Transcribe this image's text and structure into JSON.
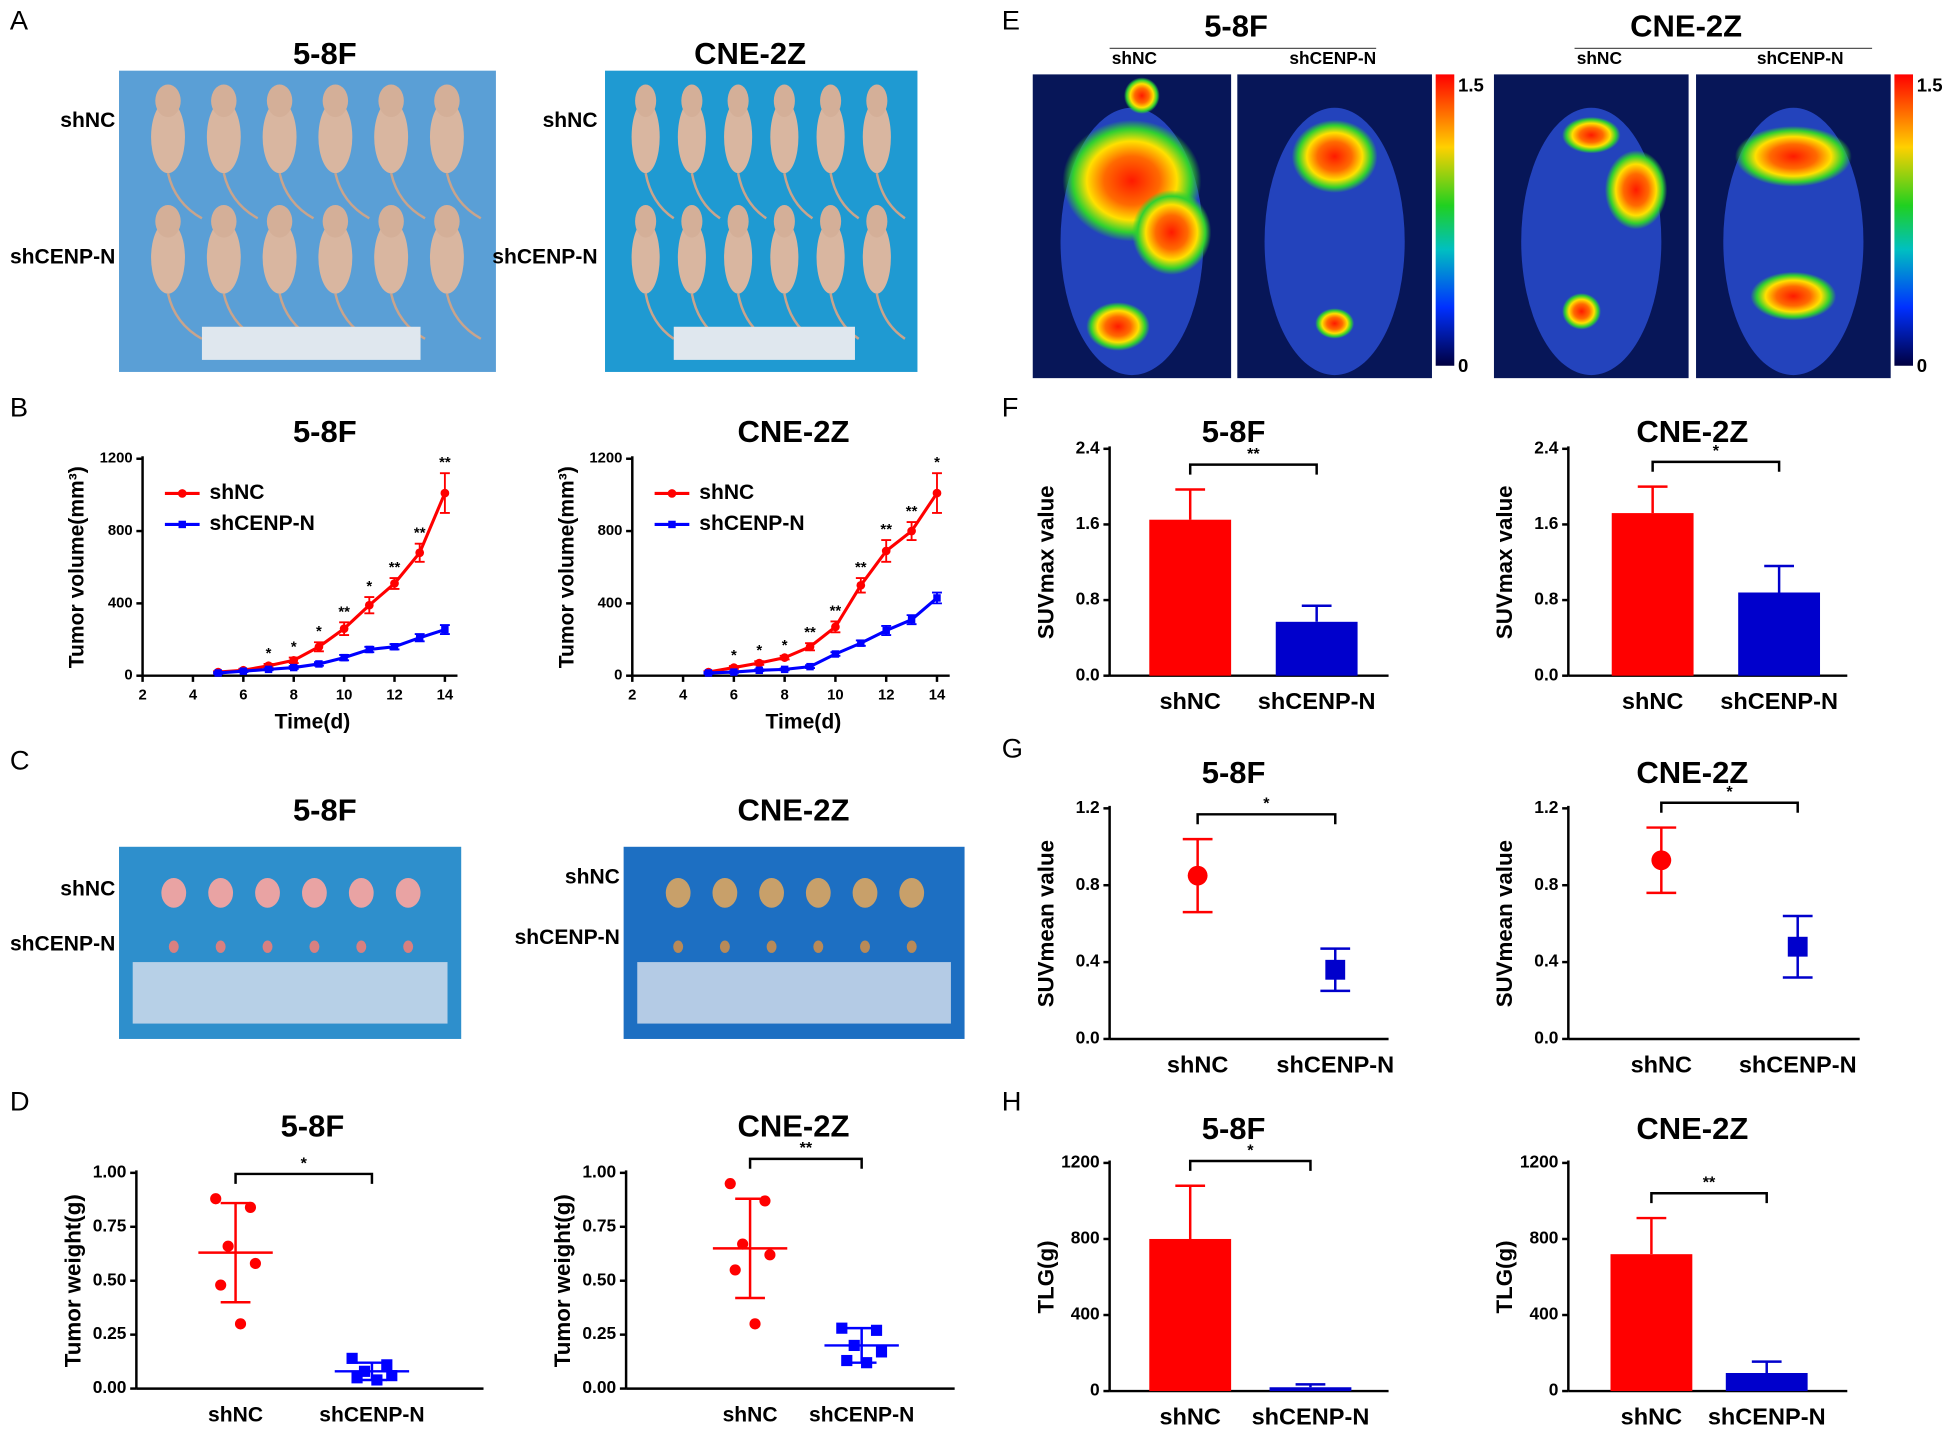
{
  "panel_letters": [
    "A",
    "B",
    "C",
    "D",
    "E",
    "F",
    "G",
    "H"
  ],
  "panel_a": [
    {
      "title": "5-8F",
      "rows": [
        "shNC",
        "shCENP-N"
      ]
    },
    {
      "title": "CNE-2Z",
      "rows": [
        "shNC",
        "shCENP-N"
      ]
    }
  ],
  "panel_c": [
    {
      "title": "5-8F",
      "rows": [
        "shNC",
        "shCENP-N"
      ]
    },
    {
      "title": "CNE-2Z",
      "rows": [
        "shNC",
        "shCENP-N"
      ]
    }
  ],
  "panel_e": [
    {
      "title": "5-8F",
      "columns": [
        "shNC",
        "shCENP-N"
      ],
      "scale_max": 1.5,
      "scale_min": 0
    },
    {
      "title": "CNE-2Z",
      "columns": [
        "shNC",
        "shCENP-N"
      ],
      "scale_max": 1.5,
      "scale_min": 0
    }
  ],
  "chart_data": [
    {
      "type": "line",
      "title": "5-8F",
      "x_label": "Time(d)",
      "y_label": "Tumor volume(mm³)",
      "x": [
        5,
        6,
        7,
        8,
        9,
        10,
        11,
        12,
        13,
        14
      ],
      "xlim": [
        2,
        14.5
      ],
      "xticks": [
        2,
        4,
        6,
        8,
        10,
        12,
        14
      ],
      "ylim": [
        0,
        1200
      ],
      "yticks": [
        0,
        400,
        800,
        1200
      ],
      "legend": "upper left",
      "series": [
        {
          "name": "shNC",
          "color": "#ff0000",
          "marker": "circle",
          "values": [
            20,
            30,
            55,
            85,
            160,
            260,
            390,
            510,
            680,
            1010
          ],
          "errors": [
            5,
            8,
            10,
            15,
            25,
            35,
            45,
            30,
            50,
            110
          ]
        },
        {
          "name": "shCENP-N",
          "color": "#0000ff",
          "marker": "square",
          "values": [
            15,
            25,
            35,
            45,
            65,
            100,
            145,
            160,
            210,
            255
          ],
          "errors": [
            5,
            5,
            5,
            8,
            10,
            15,
            15,
            15,
            20,
            25
          ]
        }
      ],
      "significance": [
        null,
        null,
        "*",
        "*",
        "*",
        "**",
        "*",
        "**",
        "**",
        "**"
      ]
    },
    {
      "type": "line",
      "title": "CNE-2Z",
      "x_label": "Time(d)",
      "y_label": "Tumor volume(mm³)",
      "x": [
        5,
        6,
        7,
        8,
        9,
        10,
        11,
        12,
        13,
        14
      ],
      "xlim": [
        2,
        14.5
      ],
      "xticks": [
        2,
        4,
        6,
        8,
        10,
        12,
        14
      ],
      "ylim": [
        0,
        1200
      ],
      "yticks": [
        0,
        400,
        800,
        1200
      ],
      "legend": "upper left",
      "series": [
        {
          "name": "shNC",
          "color": "#ff0000",
          "marker": "circle",
          "values": [
            20,
            45,
            70,
            100,
            160,
            270,
            500,
            690,
            800,
            1010
          ],
          "errors": [
            5,
            8,
            10,
            10,
            20,
            30,
            40,
            60,
            50,
            110
          ]
        },
        {
          "name": "shCENP-N",
          "color": "#0000ff",
          "marker": "square",
          "values": [
            15,
            20,
            30,
            35,
            50,
            120,
            180,
            250,
            310,
            430
          ],
          "errors": [
            5,
            5,
            5,
            5,
            8,
            10,
            15,
            25,
            25,
            30
          ]
        }
      ],
      "significance": [
        null,
        "*",
        "*",
        "*",
        "**",
        "**",
        "**",
        "**",
        "**",
        "*"
      ]
    },
    {
      "type": "scatter",
      "title": "5-8F",
      "y_label": "Tumor weight(g)",
      "ylim": [
        0,
        1
      ],
      "yticks": [
        {
          "value": 0,
          "label": "0.00"
        },
        {
          "value": 0.25,
          "label": "0.25"
        },
        {
          "value": 0.5,
          "label": "0.50"
        },
        {
          "value": 0.75,
          "label": "0.75"
        },
        {
          "value": 1,
          "label": "1.00"
        }
      ],
      "series": [
        {
          "name": "shNC",
          "color": "#ff0000",
          "marker": "circle",
          "values": [
            0.88,
            0.84,
            0.66,
            0.58,
            0.48,
            0.3
          ],
          "mean": 0.63,
          "sd": 0.23
        },
        {
          "name": "shCENP-N",
          "color": "#0000ff",
          "marker": "square",
          "values": [
            0.14,
            0.11,
            0.08,
            0.06,
            0.05,
            0.04
          ],
          "mean": 0.08,
          "sd": 0.04
        }
      ],
      "significance": "*"
    },
    {
      "type": "scatter",
      "title": "CNE-2Z",
      "y_label": "Tumor weight(g)",
      "ylim": [
        0,
        1
      ],
      "yticks": [
        {
          "value": 0,
          "label": "0.00"
        },
        {
          "value": 0.25,
          "label": "0.25"
        },
        {
          "value": 0.5,
          "label": "0.50"
        },
        {
          "value": 0.75,
          "label": "0.75"
        },
        {
          "value": 1,
          "label": "1.00"
        }
      ],
      "series": [
        {
          "name": "shNC",
          "color": "#ff0000",
          "marker": "circle",
          "values": [
            0.95,
            0.87,
            0.67,
            0.62,
            0.55,
            0.3
          ],
          "mean": 0.65,
          "sd": 0.23
        },
        {
          "name": "shCENP-N",
          "color": "#0000ff",
          "marker": "square",
          "values": [
            0.28,
            0.27,
            0.2,
            0.17,
            0.13,
            0.12
          ],
          "mean": 0.2,
          "sd": 0.08
        }
      ],
      "significance": "**"
    },
    {
      "type": "bar",
      "title": "5-8F",
      "y_label": "SUVmax value",
      "categories": [
        "shNC",
        "shCENP-N"
      ],
      "values": [
        1.65,
        0.57
      ],
      "errors": [
        0.32,
        0.17
      ],
      "colors": [
        "#ff0000",
        "#0000cc"
      ],
      "ylim": [
        0,
        2.4
      ],
      "yticks": [
        {
          "value": 0,
          "label": "0.0"
        },
        0.8,
        1.6,
        2.4
      ],
      "significance": "**"
    },
    {
      "type": "bar",
      "title": "CNE-2Z",
      "y_label": "SUVmax value",
      "categories": [
        "shNC",
        "shCENP-N"
      ],
      "values": [
        1.72,
        0.88
      ],
      "errors": [
        0.28,
        0.28
      ],
      "colors": [
        "#ff0000",
        "#0000cc"
      ],
      "ylim": [
        0,
        2.4
      ],
      "yticks": [
        {
          "value": 0,
          "label": "0.0"
        },
        0.8,
        1.6,
        2.4
      ],
      "significance": "*"
    },
    {
      "type": "dot",
      "title": "5-8F",
      "y_label": "SUVmean value",
      "categories": [
        "shNC",
        "shCENP-N"
      ],
      "values": [
        0.85,
        0.36
      ],
      "errors": [
        0.19,
        0.11
      ],
      "colors": [
        "#ff0000",
        "#0000cc"
      ],
      "markers": [
        "circle",
        "square"
      ],
      "ylim": [
        0,
        1.2
      ],
      "yticks": [
        {
          "value": 0,
          "label": "0.0"
        },
        0.4,
        0.8,
        1.2
      ],
      "significance": "*"
    },
    {
      "type": "dot",
      "title": "CNE-2Z",
      "y_label": "SUVmean value",
      "categories": [
        "shNC",
        "shCENP-N"
      ],
      "values": [
        0.93,
        0.48
      ],
      "errors": [
        0.17,
        0.16
      ],
      "colors": [
        "#ff0000",
        "#0000cc"
      ],
      "markers": [
        "circle",
        "square"
      ],
      "ylim": [
        0,
        1.2
      ],
      "yticks": [
        {
          "value": 0,
          "label": "0.0"
        },
        0.4,
        0.8,
        1.2
      ],
      "significance": "*"
    },
    {
      "type": "bar",
      "title": "5-8F",
      "y_label": "TLG(g)",
      "categories": [
        "shNC",
        "shCENP-N"
      ],
      "values": [
        800,
        20
      ],
      "errors": [
        280,
        15
      ],
      "colors": [
        "#ff0000",
        "#0000cc"
      ],
      "ylim": [
        0,
        1200
      ],
      "yticks": [
        0,
        400,
        800,
        1200
      ],
      "significance": "*"
    },
    {
      "type": "bar",
      "title": "CNE-2Z",
      "y_label": "TLG(g)",
      "categories": [
        "shNC",
        "shCENP-N"
      ],
      "values": [
        720,
        95
      ],
      "errors": [
        190,
        60
      ],
      "colors": [
        "#ff0000",
        "#0000cc"
      ],
      "ylim": [
        0,
        1200
      ],
      "yticks": [
        0,
        400,
        800,
        1200
      ],
      "significance": "**"
    }
  ]
}
